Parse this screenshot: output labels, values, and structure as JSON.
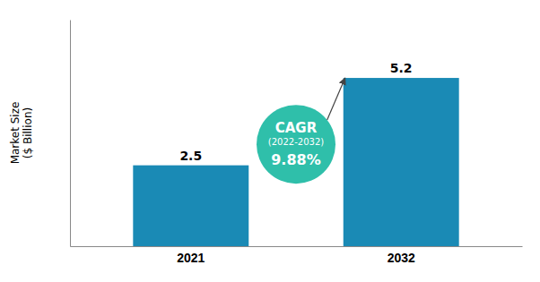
{
  "chart_data": {
    "type": "bar",
    "categories": [
      "2021",
      "2032"
    ],
    "values": [
      2.5,
      5.2
    ],
    "color": "#1a8ab5",
    "ylabel": "Market Size\n($ Billion)",
    "ylim": [
      0,
      7.0
    ],
    "yticks": [],
    "tick_labels": "x",
    "data_labels": true,
    "grid": false,
    "annotation": {
      "lines": [
        "CAGR",
        "(2022-2032)",
        "9.88%"
      ],
      "color": "#2fbfaa"
    }
  }
}
